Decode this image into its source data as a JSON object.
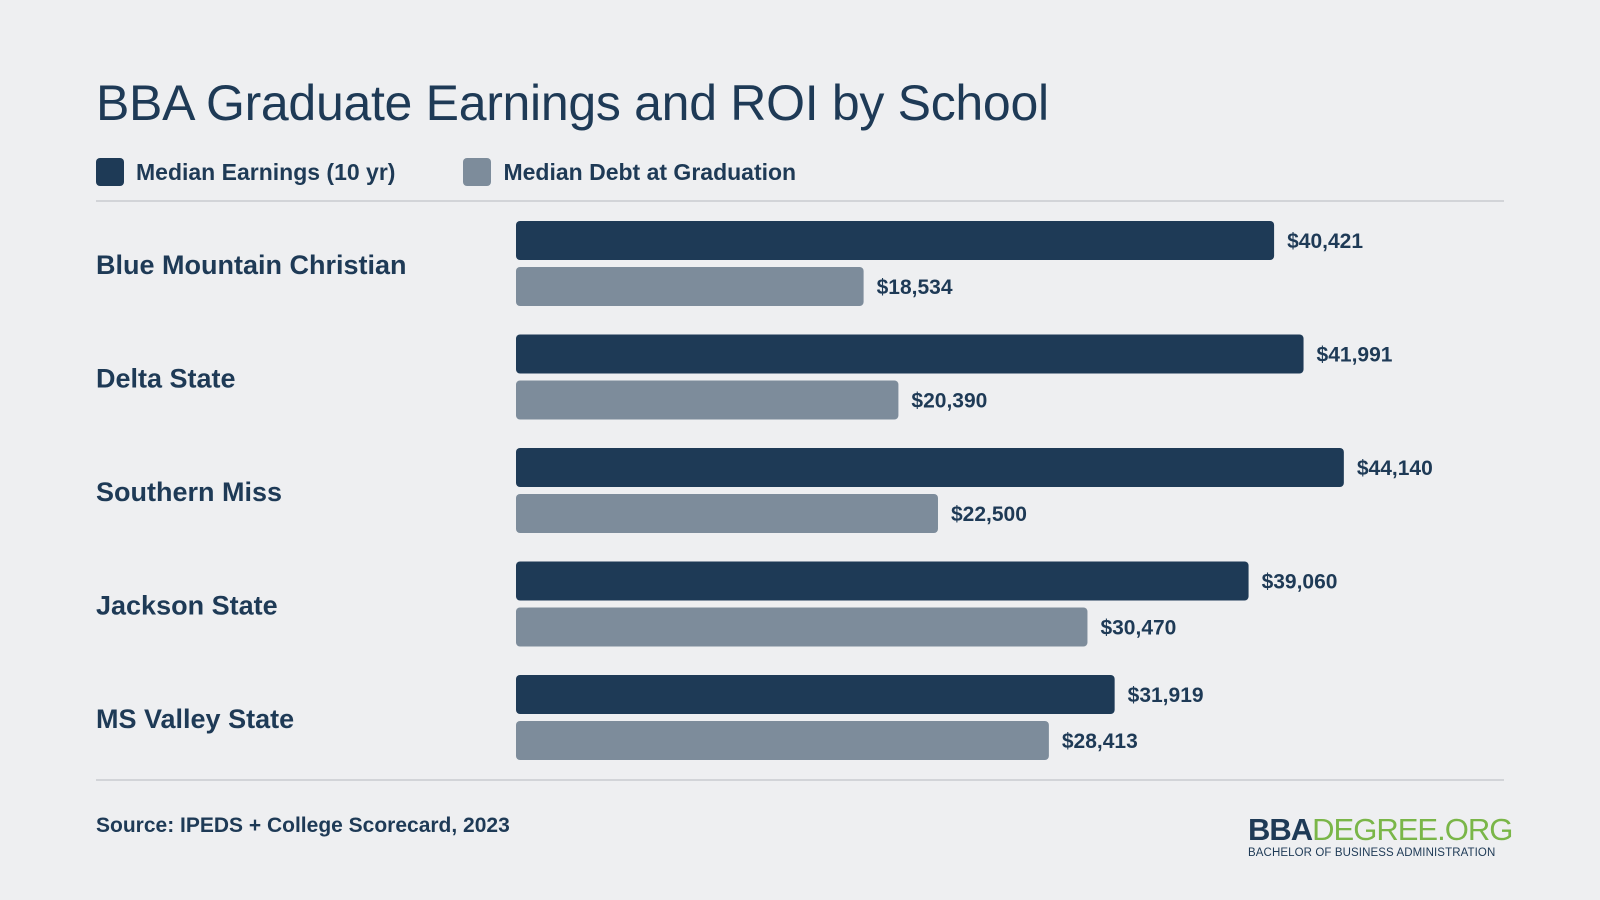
{
  "title": "BBA Graduate Earnings and ROI by School",
  "source": "Source: IPEDS + College Scorecard, 2023",
  "logo": {
    "bold": "BBA",
    "light": "DEGREE.ORG",
    "tagline": "BACHELOR OF BUSINESS ADMINISTRATION"
  },
  "colors": {
    "earnings": "#1e3a56",
    "debt": "#7d8c9b",
    "brand_green": "#7ab648"
  },
  "chart_data": {
    "type": "bar",
    "orientation": "horizontal",
    "title": "BBA Graduate Earnings and ROI by School",
    "categories": [
      "Blue Mountain Christian",
      "Delta State",
      "Southern Miss",
      "Jackson State",
      "MS Valley State"
    ],
    "series": [
      {
        "name": "Median Earnings (10 yr)",
        "values": [
          40421,
          41991,
          44140,
          39060,
          31919
        ],
        "labels": [
          "$40,421",
          "$41,991",
          "$44,140",
          "$39,060",
          "$31,919"
        ],
        "color": "#1e3a56"
      },
      {
        "name": "Median Debt at Graduation",
        "values": [
          18534,
          20390,
          22500,
          30470,
          28413
        ],
        "labels": [
          "$18,534",
          "$20,390",
          "$22,500",
          "$30,470",
          "$28,413"
        ],
        "color": "#7d8c9b"
      }
    ],
    "xlim": [
      0,
      53000
    ],
    "legend": "top-left",
    "grid": false
  }
}
